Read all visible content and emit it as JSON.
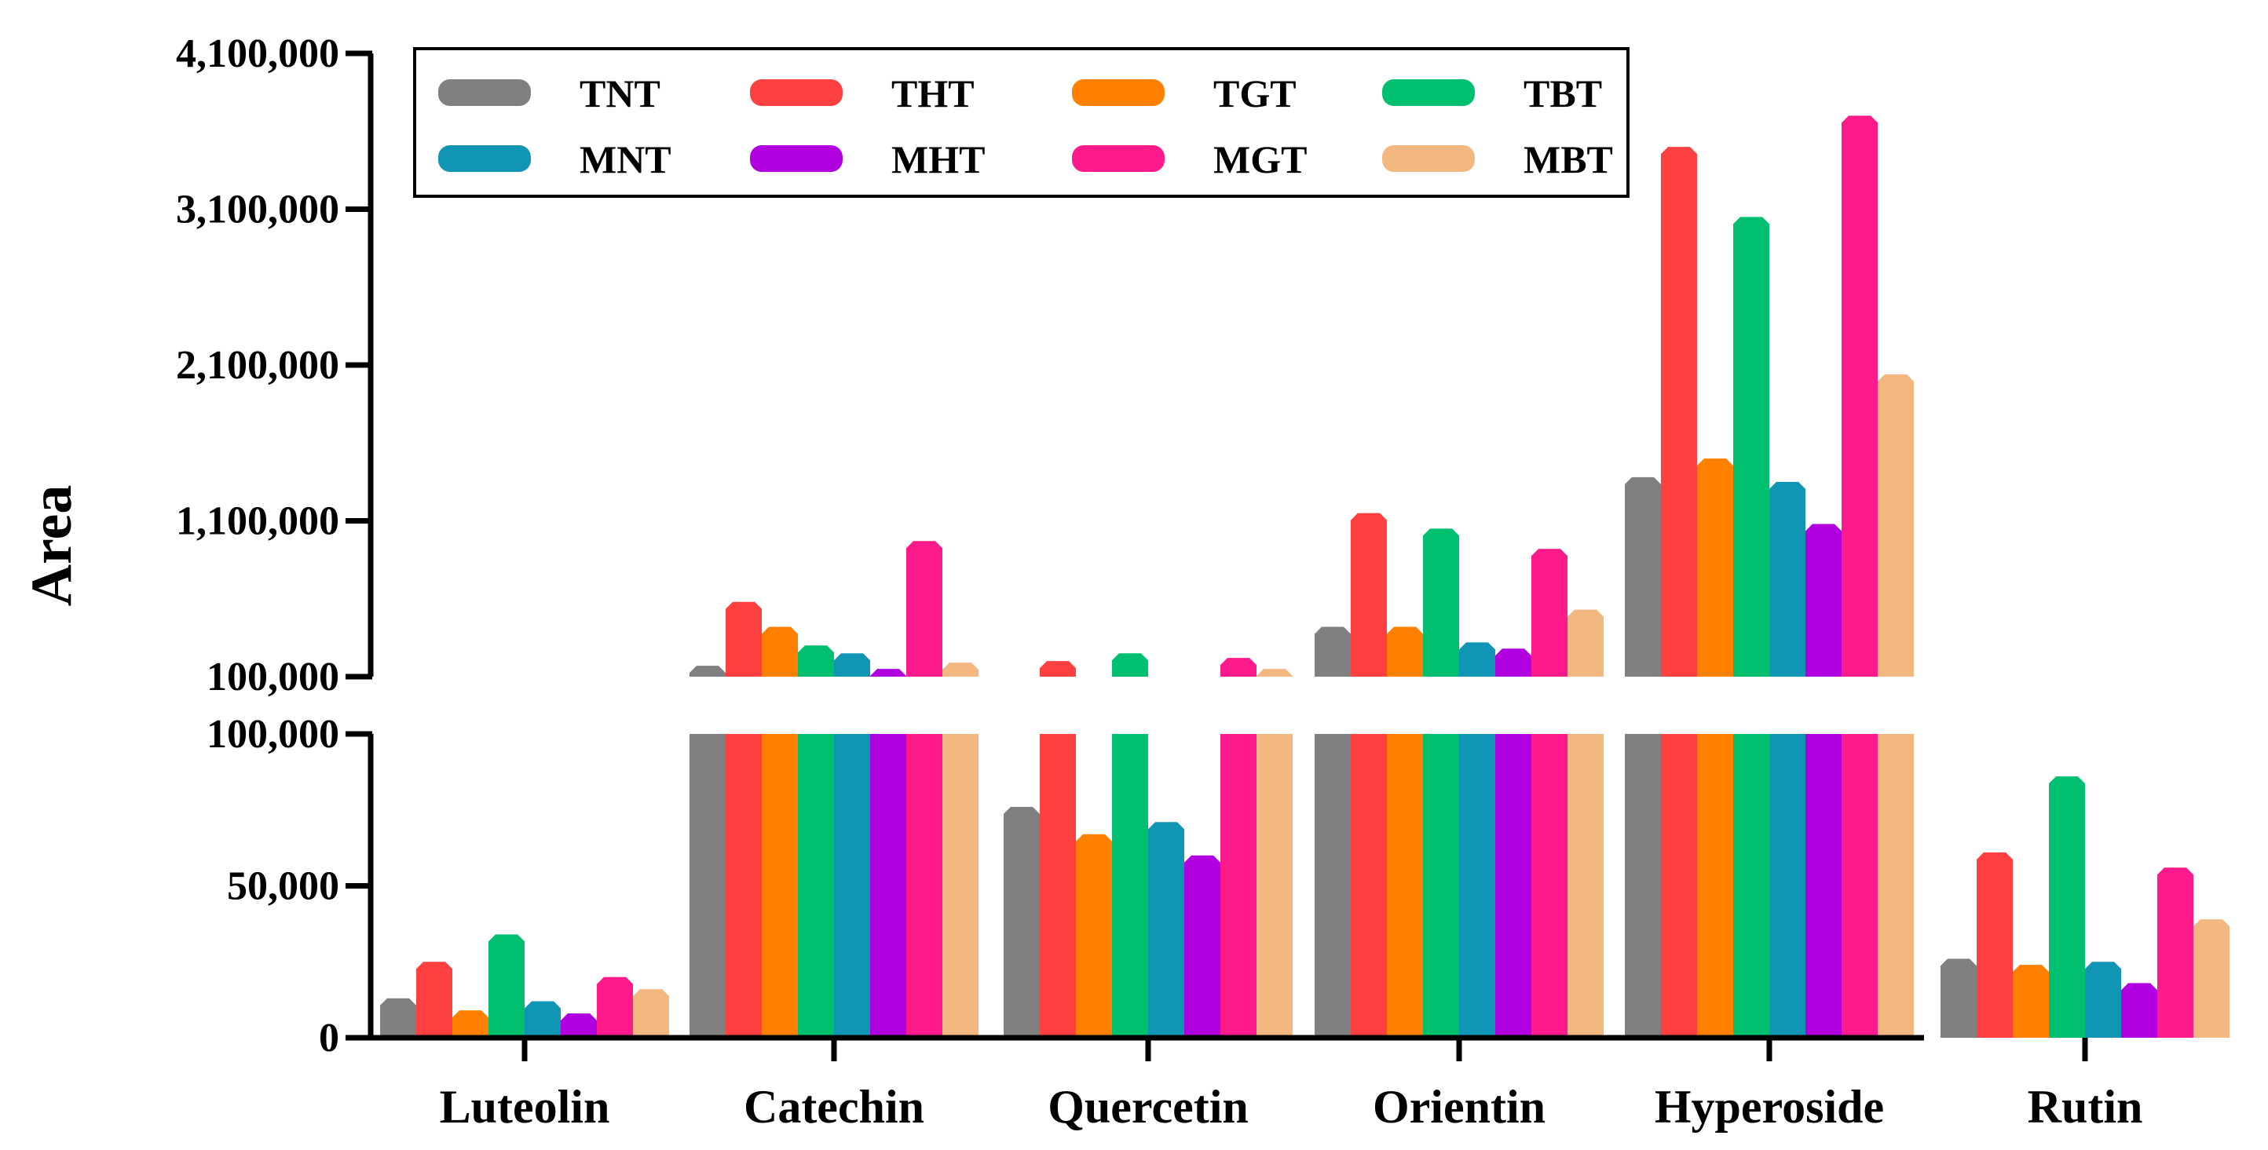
{
  "chart_data": {
    "type": "bar",
    "title": "",
    "xlabel": "",
    "ylabel": "Area",
    "categories": [
      "Luteolin",
      "Catechin",
      "Quercetin",
      "Orientin",
      "Hyperoside",
      "Rutin"
    ],
    "series": [
      {
        "name": "TNT",
        "color": "#808080",
        "values": [
          13000,
          170000,
          76000,
          420000,
          1380000,
          26000
        ]
      },
      {
        "name": "THT",
        "color": "#FF4040",
        "values": [
          25000,
          580000,
          200000,
          1150000,
          3500000,
          61000
        ]
      },
      {
        "name": "TGT",
        "color": "#FF8000",
        "values": [
          9000,
          420000,
          67000,
          420000,
          1500000,
          24000
        ]
      },
      {
        "name": "TBT",
        "color": "#00C070",
        "values": [
          34000,
          300000,
          250000,
          1050000,
          3050000,
          86000
        ]
      },
      {
        "name": "MNT",
        "color": "#1095B4",
        "values": [
          12000,
          250000,
          71000,
          320000,
          1350000,
          25000
        ]
      },
      {
        "name": "MHT",
        "color": "#B000E0",
        "values": [
          8000,
          150000,
          60000,
          280000,
          1080000,
          18000
        ]
      },
      {
        "name": "MGT",
        "color": "#FF1A8C",
        "values": [
          20000,
          970000,
          220000,
          920000,
          3700000,
          56000
        ]
      },
      {
        "name": "MBT",
        "color": "#F2B880",
        "values": [
          16000,
          190000,
          150000,
          530000,
          2040000,
          39000
        ]
      }
    ],
    "y_axis": {
      "broken": true,
      "lower_segment": {
        "range": [
          0,
          100000
        ],
        "ticks": [
          "0",
          "50,000",
          "100,000"
        ],
        "tick_values": [
          0,
          50000,
          100000
        ]
      },
      "upper_segment": {
        "range": [
          100000,
          4100000
        ],
        "ticks": [
          "100,000",
          "1,100,000",
          "2,100,000",
          "3,100,000",
          "4,100,000"
        ],
        "tick_values": [
          100000,
          1100000,
          2100000,
          3100000,
          4100000
        ]
      }
    },
    "legend": {
      "position": "top-left",
      "columns": 4
    },
    "grid": false
  }
}
